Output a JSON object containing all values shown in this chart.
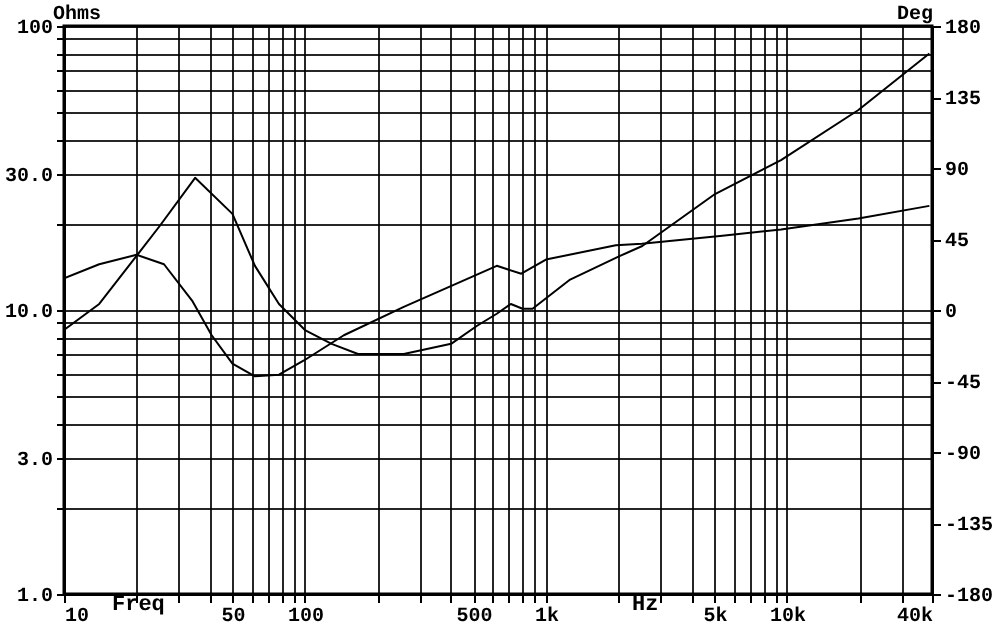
{
  "chart_data": {
    "type": "line",
    "ylabel": "Ohms",
    "y2label": "Deg",
    "annotations": [
      "Freq",
      "Hz"
    ],
    "log": "xy",
    "grid": true,
    "xlim": [
      10,
      40000
    ],
    "ylim": [
      1,
      100
    ],
    "y2lim": [
      -180,
      180
    ],
    "xticks": [
      10,
      {
        "value": 20,
        "label": null
      },
      {
        "value": 30,
        "label": null
      },
      {
        "value": 40,
        "label": null
      },
      50,
      {
        "value": 60,
        "label": null
      },
      {
        "value": 70,
        "label": null
      },
      {
        "value": 80,
        "label": null
      },
      {
        "value": 90,
        "label": null
      },
      100,
      {
        "value": 200,
        "label": null
      },
      {
        "value": 300,
        "label": null
      },
      {
        "value": 400,
        "label": null
      },
      500,
      {
        "value": 600,
        "label": null
      },
      {
        "value": 700,
        "label": null
      },
      {
        "value": 800,
        "label": null
      },
      {
        "value": 900,
        "label": null
      },
      {
        "value": 1000,
        "label": "1k"
      },
      {
        "value": 2000,
        "label": null
      },
      {
        "value": 3000,
        "label": null
      },
      {
        "value": 4000,
        "label": null
      },
      {
        "value": 5000,
        "label": "5k"
      },
      {
        "value": 6000,
        "label": null
      },
      {
        "value": 7000,
        "label": null
      },
      {
        "value": 8000,
        "label": null
      },
      {
        "value": 9000,
        "label": null
      },
      {
        "value": 10000,
        "label": "10k"
      },
      {
        "value": 20000,
        "label": null
      },
      {
        "value": 30000,
        "label": null
      },
      {
        "value": 40000,
        "label": "40k"
      }
    ],
    "yticks": [
      {
        "value": 1,
        "label": "1.0"
      },
      {
        "value": 2,
        "label": null
      },
      {
        "value": 3,
        "label": "3.0"
      },
      {
        "value": 4,
        "label": null
      },
      {
        "value": 5,
        "label": null
      },
      {
        "value": 6,
        "label": null
      },
      {
        "value": 7,
        "label": null
      },
      {
        "value": 8,
        "label": null
      },
      {
        "value": 9,
        "label": null
      },
      {
        "value": 10,
        "label": "10.0"
      },
      {
        "value": 20,
        "label": null
      },
      {
        "value": 30,
        "label": "30.0"
      },
      {
        "value": 40,
        "label": null
      },
      {
        "value": 50,
        "label": null
      },
      {
        "value": 60,
        "label": null
      },
      {
        "value": 70,
        "label": null
      },
      {
        "value": 80,
        "label": null
      },
      {
        "value": 90,
        "label": null
      },
      100
    ],
    "y2ticks": [
      -180,
      -135,
      -90,
      -45,
      0,
      45,
      90,
      135,
      180
    ],
    "series": [
      {
        "color": "#000000",
        "x": [
          10,
          14,
          20,
          25,
          35,
          50,
          62,
          78,
          100,
          129,
          166,
          257,
          404,
          518,
          625,
          715,
          800,
          880,
          1260,
          2030,
          2510,
          5030,
          9450,
          19800,
          39000
        ],
        "values": [
          8.5,
          10.5,
          15.5,
          19.8,
          29.2,
          21.8,
          14.3,
          10.5,
          8.5,
          7.6,
          7.0,
          7.0,
          7.6,
          8.8,
          9.7,
          10.5,
          10.1,
          10.1,
          12.8,
          15.5,
          16.8,
          25.6,
          33.7,
          50.6,
          80
        ]
      },
      {
        "color": "#000000",
        "axis": "y2",
        "x": [
          10,
          14,
          20,
          26,
          34,
          41,
          50,
          62,
          78,
          99,
          145,
          257,
          625,
          790,
          1000,
          1950,
          2500,
          5400,
          9450,
          19800,
          39000
        ],
        "values": [
          20,
          29,
          35,
          29,
          6,
          -16,
          -34,
          -42,
          -41,
          -32,
          -16,
          2,
          28,
          23,
          32,
          41,
          42,
          47,
          51,
          58,
          66
        ]
      }
    ]
  }
}
